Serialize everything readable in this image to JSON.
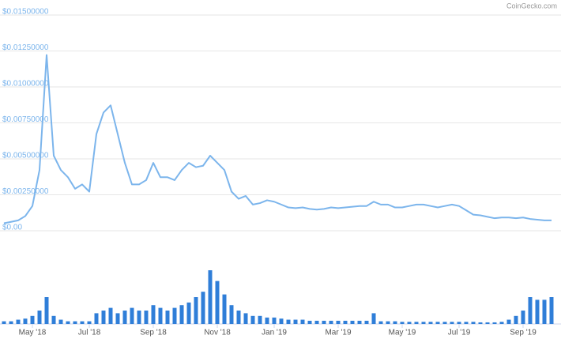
{
  "chart_data": {
    "type": "line",
    "watermark": "CoinGecko.com",
    "categories": [
      null,
      null,
      null,
      null,
      "May '18",
      null,
      null,
      null,
      null,
      null,
      null,
      null,
      "Jul '18",
      null,
      null,
      null,
      null,
      null,
      null,
      null,
      null,
      "Sep '18",
      null,
      null,
      null,
      null,
      null,
      null,
      null,
      null,
      "Nov '18",
      null,
      null,
      null,
      null,
      null,
      null,
      null,
      "Jan '19",
      null,
      null,
      null,
      null,
      null,
      null,
      null,
      null,
      "Mar '19",
      null,
      null,
      null,
      null,
      null,
      null,
      null,
      null,
      "May '19",
      null,
      null,
      null,
      null,
      null,
      null,
      null,
      "Jul '19",
      null,
      null,
      null,
      null,
      null,
      null,
      null,
      null,
      "Sep '19",
      null,
      null,
      null,
      null
    ],
    "series": [
      {
        "color": "#7cb5ec",
        "values": [
          0.0003,
          0.0004,
          0.0005,
          0.0008,
          0.0015,
          0.004,
          0.012,
          0.005,
          0.004,
          0.0035,
          0.0027,
          0.003,
          0.0025,
          0.0065,
          0.008,
          0.0085,
          0.0065,
          0.0045,
          0.003,
          0.003,
          0.0033,
          0.0045,
          0.0035,
          0.0035,
          0.0033,
          0.004,
          0.0045,
          0.0042,
          0.0043,
          0.005,
          0.0045,
          0.004,
          0.0025,
          0.002,
          0.0022,
          0.0016,
          0.0017,
          0.0019,
          0.0018,
          0.0016,
          0.0014,
          0.00135,
          0.0014,
          0.0013,
          0.00125,
          0.0013,
          0.0014,
          0.00135,
          0.0014,
          0.00145,
          0.0015,
          0.0015,
          0.0018,
          0.0016,
          0.0016,
          0.0014,
          0.0014,
          0.0015,
          0.0016,
          0.0016,
          0.0015,
          0.0014,
          0.0015,
          0.0016,
          0.0015,
          0.0012,
          0.0009,
          0.00085,
          0.00075,
          0.00065,
          0.0007,
          0.0007,
          0.00065,
          0.0007,
          0.0006,
          0.00055,
          0.0005,
          0.0005
        ]
      }
    ],
    "volume": {
      "color": "#2f7ed8",
      "values": [
        5,
        5,
        8,
        10,
        15,
        25,
        50,
        15,
        8,
        5,
        5,
        5,
        5,
        20,
        25,
        30,
        20,
        25,
        30,
        25,
        25,
        35,
        30,
        25,
        30,
        35,
        40,
        50,
        60,
        100,
        80,
        55,
        35,
        25,
        20,
        15,
        15,
        12,
        12,
        10,
        8,
        8,
        8,
        6,
        6,
        6,
        6,
        6,
        6,
        6,
        6,
        6,
        20,
        5,
        5,
        5,
        4,
        4,
        4,
        4,
        4,
        4,
        4,
        4,
        4,
        4,
        4,
        3,
        3,
        3,
        4,
        8,
        15,
        25,
        50,
        45,
        45,
        50
      ]
    },
    "ylim": [
      0,
      0.015
    ],
    "yticks": [
      {
        "value": 0,
        "label": "$0.00"
      },
      {
        "value": 0.0025,
        "label": "$0.00250000"
      },
      {
        "value": 0.005,
        "label": "$0.00500000"
      },
      {
        "value": 0.0075,
        "label": "$0.00750000"
      },
      {
        "value": 0.01,
        "label": "$0.01000000"
      },
      {
        "value": 0.0125,
        "label": "$0.01250000"
      },
      {
        "value": 0.015,
        "label": "$0.01500000"
      }
    ],
    "grid": true
  }
}
